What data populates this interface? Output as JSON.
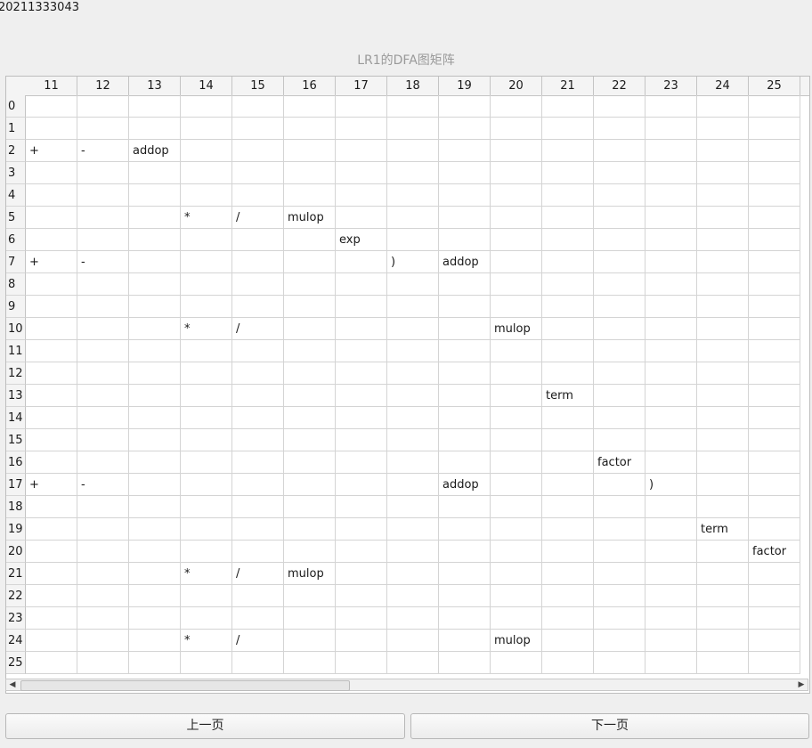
{
  "student_id": "20211333043",
  "title": "LR1的DFA图矩阵",
  "table": {
    "columns": [
      "11",
      "12",
      "13",
      "14",
      "15",
      "16",
      "17",
      "18",
      "19",
      "20",
      "21",
      "22",
      "23",
      "24",
      "25"
    ],
    "rows": [
      [
        "",
        "",
        "",
        "",
        "",
        "",
        "",
        "",
        "",
        "",
        "",
        "",
        "",
        "",
        ""
      ],
      [
        "",
        "",
        "",
        "",
        "",
        "",
        "",
        "",
        "",
        "",
        "",
        "",
        "",
        "",
        ""
      ],
      [
        "+",
        "-",
        "addop",
        "",
        "",
        "",
        "",
        "",
        "",
        "",
        "",
        "",
        "",
        "",
        ""
      ],
      [
        "",
        "",
        "",
        "",
        "",
        "",
        "",
        "",
        "",
        "",
        "",
        "",
        "",
        "",
        ""
      ],
      [
        "",
        "",
        "",
        "",
        "",
        "",
        "",
        "",
        "",
        "",
        "",
        "",
        "",
        "",
        ""
      ],
      [
        "",
        "",
        "",
        "*",
        "/",
        "mulop",
        "",
        "",
        "",
        "",
        "",
        "",
        "",
        "",
        ""
      ],
      [
        "",
        "",
        "",
        "",
        "",
        "",
        "exp",
        "",
        "",
        "",
        "",
        "",
        "",
        "",
        ""
      ],
      [
        "+",
        "-",
        "",
        "",
        "",
        "",
        "",
        ")",
        "addop",
        "",
        "",
        "",
        "",
        "",
        ""
      ],
      [
        "",
        "",
        "",
        "",
        "",
        "",
        "",
        "",
        "",
        "",
        "",
        "",
        "",
        "",
        ""
      ],
      [
        "",
        "",
        "",
        "",
        "",
        "",
        "",
        "",
        "",
        "",
        "",
        "",
        "",
        "",
        ""
      ],
      [
        "",
        "",
        "",
        "*",
        "/",
        "",
        "",
        "",
        "",
        "mulop",
        "",
        "",
        "",
        "",
        ""
      ],
      [
        "",
        "",
        "",
        "",
        "",
        "",
        "",
        "",
        "",
        "",
        "",
        "",
        "",
        "",
        ""
      ],
      [
        "",
        "",
        "",
        "",
        "",
        "",
        "",
        "",
        "",
        "",
        "",
        "",
        "",
        "",
        ""
      ],
      [
        "",
        "",
        "",
        "",
        "",
        "",
        "",
        "",
        "",
        "",
        "term",
        "",
        "",
        "",
        ""
      ],
      [
        "",
        "",
        "",
        "",
        "",
        "",
        "",
        "",
        "",
        "",
        "",
        "",
        "",
        "",
        ""
      ],
      [
        "",
        "",
        "",
        "",
        "",
        "",
        "",
        "",
        "",
        "",
        "",
        "",
        "",
        "",
        ""
      ],
      [
        "",
        "",
        "",
        "",
        "",
        "",
        "",
        "",
        "",
        "",
        "",
        "factor",
        "",
        "",
        ""
      ],
      [
        "+",
        "-",
        "",
        "",
        "",
        "",
        "",
        "",
        "addop",
        "",
        "",
        "",
        ")",
        "",
        ""
      ],
      [
        "",
        "",
        "",
        "",
        "",
        "",
        "",
        "",
        "",
        "",
        "",
        "",
        "",
        "",
        ""
      ],
      [
        "",
        "",
        "",
        "",
        "",
        "",
        "",
        "",
        "",
        "",
        "",
        "",
        "",
        "term",
        ""
      ],
      [
        "",
        "",
        "",
        "",
        "",
        "",
        "",
        "",
        "",
        "",
        "",
        "",
        "",
        "",
        "factor"
      ],
      [
        "",
        "",
        "",
        "*",
        "/",
        "mulop",
        "",
        "",
        "",
        "",
        "",
        "",
        "",
        "",
        ""
      ],
      [
        "",
        "",
        "",
        "",
        "",
        "",
        "",
        "",
        "",
        "",
        "",
        "",
        "",
        "",
        ""
      ],
      [
        "",
        "",
        "",
        "",
        "",
        "",
        "",
        "",
        "",
        "",
        "",
        "",
        "",
        "",
        ""
      ],
      [
        "",
        "",
        "",
        "*",
        "/",
        "",
        "",
        "",
        "",
        "mulop",
        "",
        "",
        "",
        "",
        ""
      ],
      [
        "",
        "",
        "",
        "",
        "",
        "",
        "",
        "",
        "",
        "",
        "",
        "",
        "",
        "",
        ""
      ]
    ]
  },
  "buttons": {
    "prev_label": "上一页",
    "next_label": "下一页"
  },
  "icons": {
    "scroll_left": "scroll-left-arrow-icon",
    "scroll_right": "scroll-right-arrow-icon"
  }
}
